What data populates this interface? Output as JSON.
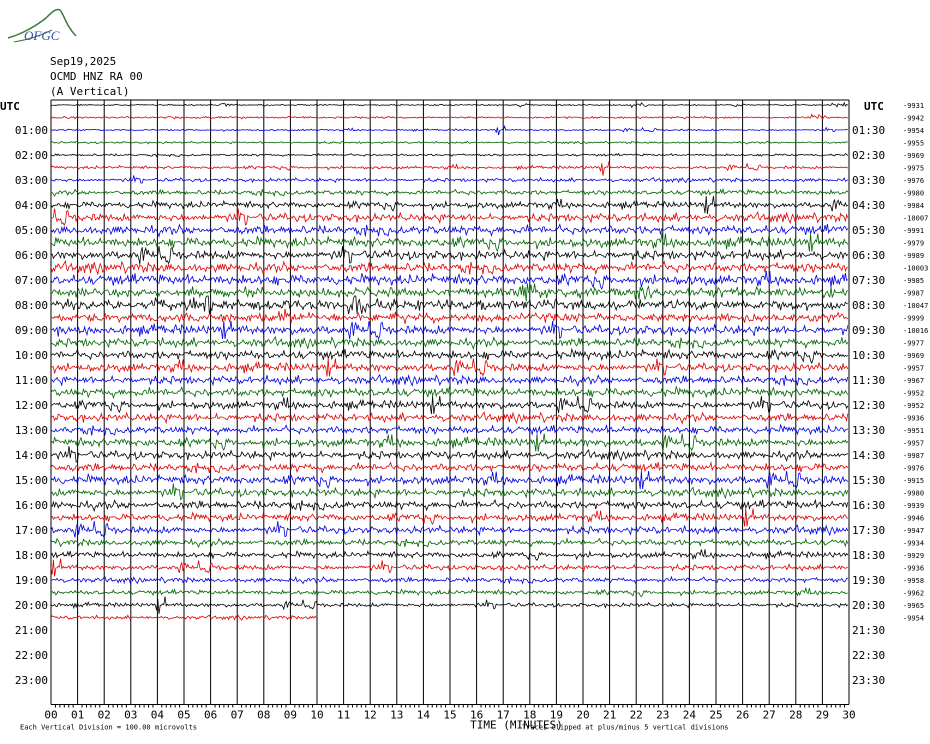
{
  "header": {
    "logo_text": "OFGC",
    "date": "Sep19,2025",
    "station": "OCMD HNZ RA 00",
    "component": "(A Vertical)"
  },
  "colors": {
    "black": "#000000",
    "red": "#e00000",
    "blue": "#0000e0",
    "green": "#006400",
    "grid": "#000000",
    "logo": "#3a7a3a",
    "logo_text": "#3050b0"
  },
  "chart_data": {
    "type": "line",
    "title": "",
    "left_axis_title": "UTC",
    "right_axis_title": "UTC",
    "xlabel": "TIME (MINUTES)",
    "footer_left": "Each Vertical Division =  100.00 microvolts",
    "footer_right": "Traces clipped at plus/minus 5 vertical divisions",
    "x_ticks": [
      "00",
      "01",
      "02",
      "03",
      "04",
      "05",
      "06",
      "07",
      "08",
      "09",
      "10",
      "11",
      "12",
      "13",
      "14",
      "15",
      "16",
      "17",
      "18",
      "19",
      "20",
      "21",
      "22",
      "23",
      "24",
      "25",
      "26",
      "27",
      "28",
      "29",
      "30"
    ],
    "xlim": [
      0,
      30
    ],
    "left_hour_labels": [
      "01:00",
      "02:00",
      "03:00",
      "04:00",
      "05:00",
      "06:00",
      "07:00",
      "08:00",
      "09:00",
      "10:00",
      "11:00",
      "12:00",
      "13:00",
      "14:00",
      "15:00",
      "16:00",
      "17:00",
      "18:00",
      "19:00",
      "20:00",
      "21:00",
      "22:00",
      "23:00"
    ],
    "right_hour_labels": [
      "01:30",
      "02:30",
      "03:30",
      "04:30",
      "05:30",
      "06:30",
      "07:30",
      "08:30",
      "09:30",
      "10:30",
      "11:30",
      "12:30",
      "13:30",
      "14:30",
      "15:30",
      "16:30",
      "17:30",
      "18:30",
      "19:30",
      "20:30",
      "21:30",
      "22:30",
      "23:30"
    ],
    "trace_offsets": [
      "-9931",
      "-9942",
      "-9954",
      "-9955",
      "-9969",
      "-9975",
      "-9976",
      "-9980",
      "-9984",
      "-10007",
      "-9991",
      "-9979",
      "-9989",
      "-10003",
      "-9985",
      "-9987",
      "-10047",
      "-9999",
      "-10016",
      "-9977",
      "-9969",
      "-9957",
      "-9967",
      "-9952",
      "-9952",
      "-9936",
      "-9951",
      "-9957",
      "-9987",
      "-9976",
      "-9915",
      "-9980",
      "-9939",
      "-9946",
      "-9947",
      "-9934",
      "-9929",
      "-9936",
      "-9958",
      "-9962",
      "-9965",
      "-9954"
    ],
    "trace_colors": [
      "black",
      "red",
      "blue",
      "green"
    ],
    "last_trace_end_minute": 10,
    "series": [
      {
        "half_hours": 42,
        "noise_profile": [
          0.6,
          0.9,
          0.8,
          0.9,
          1.0,
          1.3,
          1.6,
          2.2,
          2.8,
          3.6,
          4.0,
          4.2,
          4.0,
          4.3,
          4.5,
          4.2,
          4.4,
          4.0,
          4.1,
          3.8,
          3.9,
          3.7,
          3.6,
          3.8,
          3.5,
          3.6,
          3.4,
          3.7,
          3.5,
          3.6,
          3.8,
          3.5,
          3.6,
          3.2,
          3.3,
          2.8,
          2.6,
          2.4,
          2.2,
          2.0,
          1.8,
          1.6
        ]
      }
    ]
  }
}
